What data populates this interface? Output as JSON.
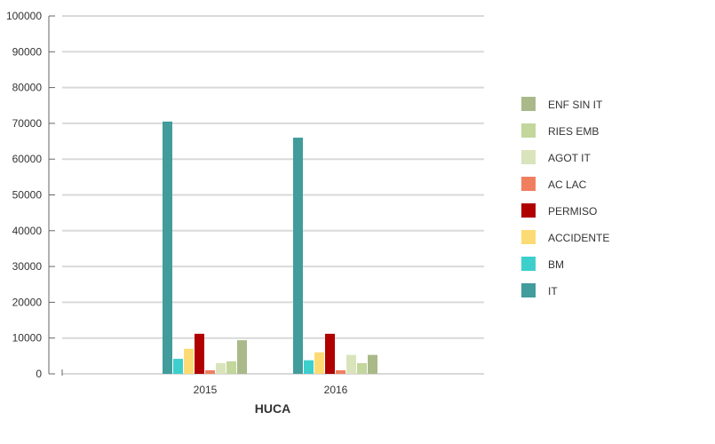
{
  "chart_data": {
    "type": "bar",
    "xlabel": "HUCA",
    "ylabel": "",
    "ylim": [
      0,
      100000
    ],
    "yticks": [
      0,
      10000,
      20000,
      30000,
      40000,
      50000,
      60000,
      70000,
      80000,
      90000,
      100000
    ],
    "grid": true,
    "legend_position": "right",
    "categories": [
      "2015",
      "2016"
    ],
    "series": [
      {
        "name": "IT",
        "color": "#419c9b",
        "values": [
          70500,
          66000
        ]
      },
      {
        "name": "BM",
        "color": "#3dcfcc",
        "values": [
          4200,
          3800
        ]
      },
      {
        "name": "ACCIDENTE",
        "color": "#fddb74",
        "values": [
          7000,
          6000
        ]
      },
      {
        "name": "PERMISO",
        "color": "#b00000",
        "values": [
          11200,
          11200
        ]
      },
      {
        "name": "AC LAC",
        "color": "#f07f5f",
        "values": [
          1000,
          1000
        ]
      },
      {
        "name": "AGOT IT",
        "color": "#d9e4bc",
        "values": [
          3000,
          5300
        ]
      },
      {
        "name": "RIES EMB",
        "color": "#c3d69b",
        "values": [
          3500,
          3000
        ]
      },
      {
        "name": "ENF SIN IT",
        "color": "#a9b98a",
        "values": [
          9400,
          5300
        ]
      }
    ]
  }
}
